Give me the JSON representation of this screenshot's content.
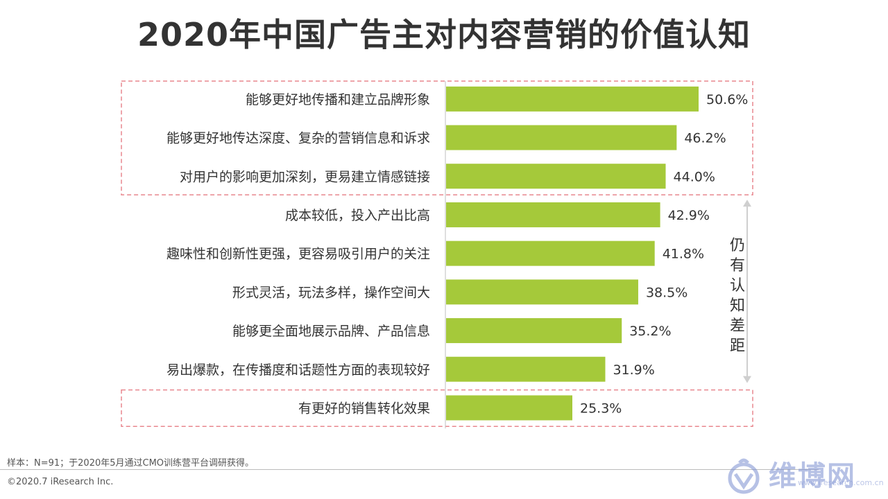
{
  "title": "2020年中国广告主对内容营销的价值认知",
  "chart_data": {
    "type": "bar",
    "orientation": "horizontal",
    "categories": [
      "能够更好地传播和建立品牌形象",
      "能够更好地传达深度、复杂的营销信息和诉求",
      "对用户的影响更加深刻，更易建立情感链接",
      "成本较低，投入产出比高",
      "趣味性和创新性更强，更容易吸引用户的关注",
      "形式灵活，玩法多样，操作空间大",
      "能够更全面地展示品牌、产品信息",
      "易出爆款，在传播度和话题性方面的表现较好",
      "有更好的销售转化效果"
    ],
    "values": [
      50.6,
      46.2,
      44.0,
      42.9,
      41.8,
      38.5,
      35.2,
      31.9,
      25.3
    ],
    "value_labels": [
      "50.6%",
      "46.2%",
      "44.0%",
      "42.9%",
      "41.8%",
      "38.5%",
      "35.2%",
      "31.9%",
      "25.3%"
    ],
    "xlim": [
      0,
      60
    ],
    "bar_color": "#a5c93a",
    "highlight_border_color": "#e8868e",
    "highlight_groups": [
      [
        0,
        2
      ],
      [
        8,
        8
      ]
    ],
    "gap_annotation": "仍有认知差距"
  },
  "note": "样本：N=91；于2020年5月通过CMO训练营平台调研获得。",
  "copyright": "©2020.7 iResearch Inc.",
  "watermark": {
    "text": "维博网",
    "sub": "www.iresearch.com.cn"
  }
}
